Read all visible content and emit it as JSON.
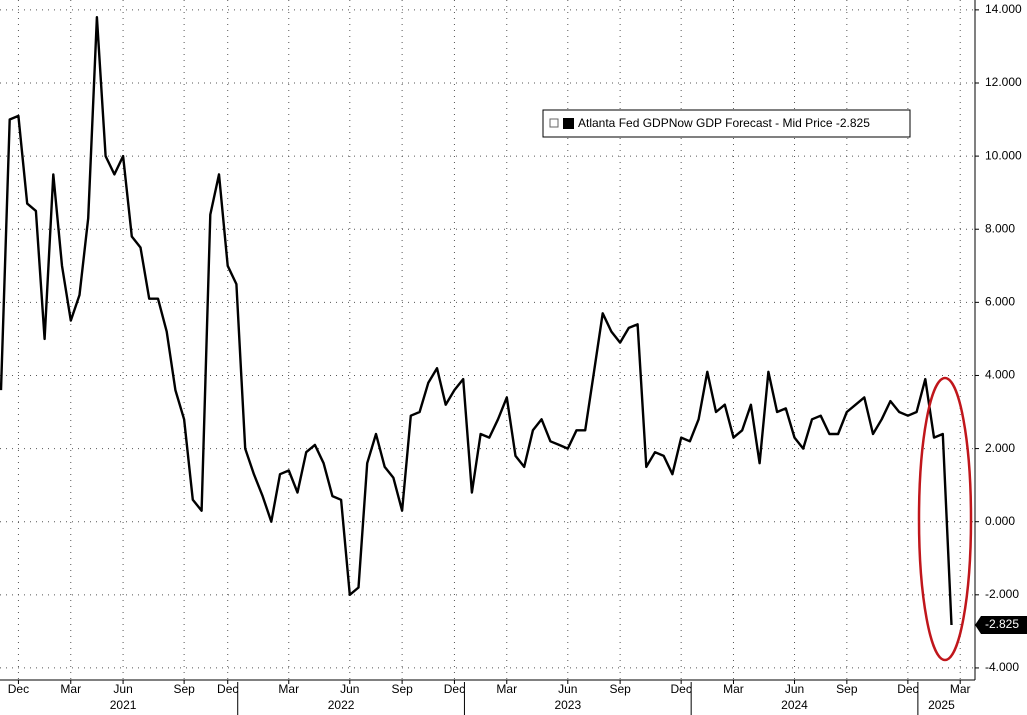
{
  "chart_data": {
    "type": "line",
    "categories": [
      null,
      null,
      "Dec",
      null,
      null,
      null,
      null,
      null,
      "Mar",
      null,
      null,
      null,
      null,
      null,
      "Jun",
      null,
      null,
      null,
      null,
      null,
      null,
      "Sep",
      null,
      null,
      null,
      null,
      "Dec",
      null,
      null,
      null,
      null,
      null,
      null,
      "Mar",
      null,
      null,
      null,
      null,
      null,
      null,
      "Jun",
      null,
      null,
      null,
      null,
      null,
      "Sep",
      null,
      null,
      null,
      null,
      null,
      "Dec",
      null,
      null,
      null,
      null,
      null,
      "Mar",
      null,
      null,
      null,
      null,
      null,
      null,
      "Jun",
      null,
      null,
      null,
      null,
      null,
      "Sep",
      null,
      null,
      null,
      null,
      null,
      null,
      "Dec",
      null,
      null,
      null,
      null,
      null,
      "Mar",
      null,
      null,
      null,
      null,
      null,
      null,
      "Jun",
      null,
      null,
      null,
      null,
      null,
      "Sep",
      null,
      null,
      null,
      null,
      null,
      null,
      "Dec",
      null,
      null,
      null,
      null,
      null,
      "Mar"
    ],
    "years": [
      "2021",
      "2022",
      "2023",
      "2024",
      "2025"
    ],
    "series": [
      {
        "name": "Atlanta Fed GDPNow GDP Forecast - Mid Price",
        "color": "#000000",
        "values": [
          3.6,
          11.0,
          11.1,
          8.7,
          8.5,
          5.0,
          9.5,
          7.0,
          5.5,
          6.2,
          8.3,
          13.8,
          10.0,
          9.5,
          10.0,
          7.8,
          7.5,
          6.1,
          6.1,
          5.2,
          3.6,
          2.8,
          0.6,
          0.3,
          8.4,
          9.5,
          7.0,
          6.5,
          2.0,
          1.3,
          0.7,
          0.0,
          1.3,
          1.4,
          0.8,
          1.9,
          2.1,
          1.6,
          0.7,
          0.6,
          -2.0,
          -1.8,
          1.6,
          2.4,
          1.5,
          1.2,
          0.3,
          2.9,
          3.0,
          3.8,
          4.2,
          3.2,
          3.6,
          3.9,
          0.8,
          2.4,
          2.3,
          2.8,
          3.4,
          1.8,
          1.5,
          2.5,
          2.8,
          2.2,
          2.1,
          2.0,
          2.5,
          2.5,
          4.1,
          5.7,
          5.2,
          4.9,
          5.3,
          5.4,
          1.5,
          1.9,
          1.8,
          1.3,
          2.3,
          2.2,
          2.8,
          4.1,
          3.0,
          3.2,
          2.3,
          2.5,
          3.2,
          1.6,
          4.1,
          3.0,
          3.1,
          2.3,
          2.0,
          2.8,
          2.9,
          2.4,
          2.4,
          3.0,
          3.2,
          3.4,
          2.4,
          2.8,
          3.3,
          3.0,
          2.9,
          3.0,
          3.9,
          2.3,
          2.4,
          -2.825,
          null
        ]
      }
    ],
    "ylim": [
      -4.33,
      14.27
    ],
    "yticks": [
      {
        "value": -4,
        "label": "-4.000"
      },
      {
        "value": -2,
        "label": "-2.000"
      },
      {
        "value": 0,
        "label": "0.000"
      },
      {
        "value": 2,
        "label": "2.000"
      },
      {
        "value": 4,
        "label": "4.000"
      },
      {
        "value": 6,
        "label": "6.000"
      },
      {
        "value": 8,
        "label": "8.000"
      },
      {
        "value": 10,
        "label": "10.000"
      },
      {
        "value": 12,
        "label": "12.000"
      },
      {
        "value": 14,
        "label": "14.000"
      }
    ],
    "grid": true
  }
}
